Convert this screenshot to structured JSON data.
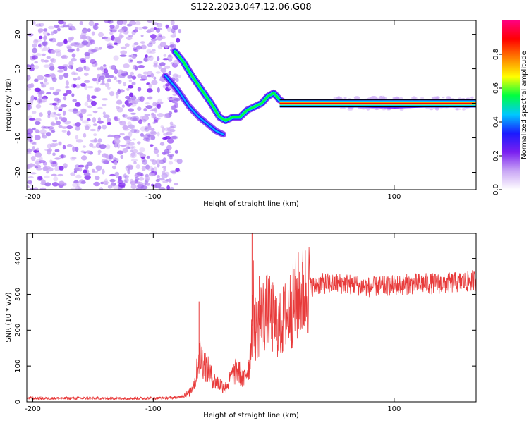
{
  "title": "S122.2023.047.12.06.G08",
  "chart_data": [
    {
      "type": "heatmap",
      "xlabel": "Height of straight line (km)",
      "ylabel": "Frequency (Hz)",
      "xlim": [
        -205,
        168
      ],
      "ylim": [
        -25,
        24
      ],
      "xticks": [
        -200,
        -100,
        100
      ],
      "yticks": [
        -20,
        -10,
        0,
        10,
        20
      ],
      "colorbar": {
        "label": "Normalized spectral amplitude",
        "range": [
          0,
          1
        ],
        "ticks": [
          0.0,
          0.2,
          0.4,
          0.6,
          0.8
        ],
        "colors": [
          "#ffffff",
          "#c9a6f5",
          "#7a1ff0",
          "#1a1aff",
          "#00c8ff",
          "#00ff40",
          "#ffff00",
          "#ff8000",
          "#ff0000",
          "#ff0080"
        ]
      },
      "noise_region_x": [
        -205,
        -82
      ],
      "trace": {
        "x": [
          -82,
          -75,
          -68,
          -60,
          -52,
          -45,
          -40,
          -34,
          -28,
          -22,
          -16,
          -10,
          -5,
          0,
          5,
          10,
          20,
          60,
          100,
          140,
          168
        ],
        "y": [
          15,
          12,
          8,
          4,
          0,
          -4,
          -5,
          -4,
          -4,
          -2,
          -1,
          0,
          2,
          3,
          1,
          0,
          0,
          0,
          -0.5,
          0,
          0
        ]
      },
      "secondary_trace": {
        "x": [
          -90,
          -80,
          -70,
          -62,
          -55,
          -48,
          -42
        ],
        "y": [
          8,
          4,
          -1,
          -4,
          -6,
          -8,
          -9
        ]
      }
    },
    {
      "type": "line",
      "xlabel": "Height of straight line (km)",
      "ylabel": "SNR (10 * v/v)",
      "xlim": [
        -205,
        168
      ],
      "ylim": [
        0,
        470
      ],
      "xticks": [
        -200,
        -100,
        100
      ],
      "yticks": [
        0,
        100,
        200,
        300,
        400
      ],
      "color": "#e83a3a",
      "envelope": {
        "x": [
          -205,
          -100,
          -80,
          -70,
          -65,
          -62,
          -58,
          -50,
          -45,
          -40,
          -35,
          -30,
          -25,
          -20,
          -17,
          -15,
          -10,
          -5,
          0,
          5,
          10,
          20,
          30,
          40,
          60,
          80,
          100,
          120,
          140,
          160,
          168
        ],
        "y": [
          10,
          10,
          12,
          25,
          60,
          130,
          110,
          60,
          50,
          40,
          70,
          90,
          60,
          110,
          280,
          200,
          240,
          250,
          230,
          210,
          240,
          290,
          320,
          330,
          330,
          320,
          325,
          330,
          330,
          335,
          340
        ]
      },
      "spikes": [
        {
          "x": -62,
          "y": 280
        },
        {
          "x": -18,
          "y": 470
        },
        {
          "x": -12,
          "y": 350
        },
        {
          "x": 12,
          "y": 280
        }
      ]
    }
  ]
}
